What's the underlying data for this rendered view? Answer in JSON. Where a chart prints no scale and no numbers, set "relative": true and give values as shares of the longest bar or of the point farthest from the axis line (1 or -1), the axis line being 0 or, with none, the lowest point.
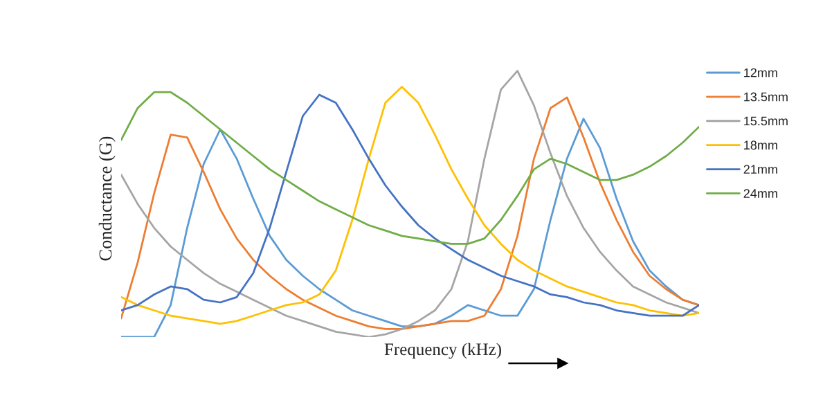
{
  "chart_data": {
    "type": "line",
    "relative": true,
    "xlabel": "Frequency (kHz)",
    "ylabel": "Conductance (G)",
    "legend": "right",
    "grid": false,
    "marker": "none",
    "line_style": "solid",
    "categories": [
      null,
      null,
      null,
      null,
      null,
      null,
      null,
      null,
      null,
      null,
      null,
      null,
      null,
      null,
      null,
      null,
      null,
      null,
      null,
      null,
      null,
      null,
      null,
      null,
      null,
      null,
      null,
      null,
      null,
      null,
      null,
      null,
      null,
      null,
      null,
      null
    ],
    "series": [
      {
        "name": "12mm",
        "color": "#5b9bd5",
        "values": [
          0,
          0,
          0,
          0.12,
          0.41,
          0.65,
          0.78,
          0.67,
          0.52,
          0.38,
          0.29,
          0.23,
          0.18,
          0.14,
          0.1,
          0.08,
          0.06,
          0.04,
          0.04,
          0.05,
          0.08,
          0.12,
          0.1,
          0.08,
          0.08,
          0.18,
          0.44,
          0.67,
          0.82,
          0.71,
          0.52,
          0.36,
          0.25,
          0.19,
          0.14,
          0.12
        ]
      },
      {
        "name": "13.5mm",
        "color": "#ed7d31",
        "values": [
          0.07,
          0.28,
          0.54,
          0.76,
          0.75,
          0.62,
          0.48,
          0.37,
          0.29,
          0.23,
          0.18,
          0.14,
          0.11,
          0.08,
          0.06,
          0.04,
          0.03,
          0.03,
          0.04,
          0.05,
          0.06,
          0.06,
          0.08,
          0.18,
          0.38,
          0.67,
          0.86,
          0.9,
          0.75,
          0.58,
          0.44,
          0.32,
          0.23,
          0.18,
          0.14,
          0.12
        ]
      },
      {
        "name": "15.5mm",
        "color": "#a5a5a5",
        "values": [
          0.61,
          0.5,
          0.41,
          0.34,
          0.29,
          0.24,
          0.2,
          0.17,
          0.14,
          0.11,
          0.08,
          0.06,
          0.04,
          0.02,
          0.01,
          0,
          0.01,
          0.03,
          0.06,
          0.1,
          0.18,
          0.36,
          0.67,
          0.93,
          1,
          0.87,
          0.69,
          0.53,
          0.41,
          0.32,
          0.25,
          0.19,
          0.16,
          0.13,
          0.11,
          0.09
        ]
      },
      {
        "name": "18mm",
        "color": "#ffc000",
        "values": [
          0.15,
          0.12,
          0.1,
          0.08,
          0.07,
          0.06,
          0.05,
          0.06,
          0.08,
          0.1,
          0.12,
          0.13,
          0.16,
          0.25,
          0.44,
          0.67,
          0.88,
          0.94,
          0.88,
          0.76,
          0.63,
          0.52,
          0.42,
          0.35,
          0.29,
          0.25,
          0.22,
          0.19,
          0.17,
          0.15,
          0.13,
          0.12,
          0.1,
          0.09,
          0.08,
          0.09
        ]
      },
      {
        "name": "21mm",
        "color": "#4472c4",
        "values": [
          0.1,
          0.12,
          0.16,
          0.19,
          0.18,
          0.14,
          0.13,
          0.15,
          0.24,
          0.41,
          0.62,
          0.83,
          0.91,
          0.88,
          0.78,
          0.67,
          0.57,
          0.49,
          0.42,
          0.37,
          0.33,
          0.29,
          0.26,
          0.23,
          0.21,
          0.19,
          0.16,
          0.15,
          0.13,
          0.12,
          0.1,
          0.09,
          0.08,
          0.08,
          0.08,
          0.12
        ]
      },
      {
        "name": "24mm",
        "color": "#70ad47",
        "values": [
          0.74,
          0.86,
          0.92,
          0.92,
          0.88,
          0.83,
          0.78,
          0.73,
          0.68,
          0.63,
          0.59,
          0.55,
          0.51,
          0.48,
          0.45,
          0.42,
          0.4,
          0.38,
          0.37,
          0.36,
          0.35,
          0.35,
          0.37,
          0.44,
          0.53,
          0.63,
          0.67,
          0.65,
          0.62,
          0.59,
          0.59,
          0.61,
          0.64,
          0.68,
          0.73,
          0.79
        ]
      }
    ]
  }
}
